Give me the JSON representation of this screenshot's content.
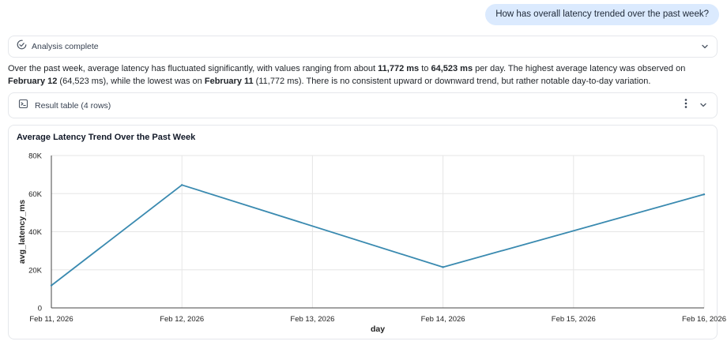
{
  "user_message": "How has overall latency trended over the past week?",
  "status": {
    "label": "Analysis complete",
    "icon": "check-circle-icon"
  },
  "summary": {
    "t1": "Over the past week, average latency has fluctuated significantly, with values ranging from about ",
    "min_value": "11,772 ms",
    "t2": " to ",
    "max_value": "64,523 ms",
    "t3": " per day. The highest average latency was observed on ",
    "max_day": "February 12",
    "t4": " (64,523 ms), while the lowest was on ",
    "min_day": "February 11",
    "t5": " (11,772 ms). There is no consistent upward or downward trend, but rather notable day-to-day variation."
  },
  "result_table": {
    "label": "Result table (4 rows)",
    "icon": "table-icon"
  },
  "colors": {
    "line": "#3a8ab0",
    "grid": "#e6e6e6",
    "axis": "#444444",
    "bubble": "#dbeafe"
  },
  "chart_data": {
    "type": "line",
    "title": "Average Latency Trend Over the Past Week",
    "xlabel": "day",
    "ylabel": "avg_latency_ms",
    "x": [
      "Feb 11, 2026",
      "Feb 12, 2026",
      "Feb 13, 2026",
      "Feb 14, 2026",
      "Feb 15, 2026",
      "Feb 16, 2026"
    ],
    "series": [
      {
        "x": [
          "Feb 11, 2026",
          "Feb 12, 2026",
          "Feb 14, 2026",
          "Feb 16, 2026"
        ],
        "values": [
          11772,
          64523,
          21400,
          59600
        ]
      }
    ],
    "ylim": [
      0,
      80000
    ],
    "yticks": [
      0,
      20000,
      40000,
      60000,
      80000
    ],
    "ytick_labels": [
      "0",
      "20K",
      "40K",
      "60K",
      "80K"
    ],
    "grid": true
  }
}
